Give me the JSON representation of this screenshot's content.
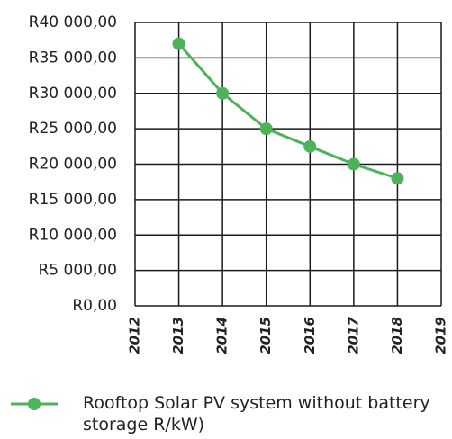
{
  "chart_data": {
    "type": "line",
    "x": [
      2013,
      2014,
      2015,
      2016,
      2017,
      2018
    ],
    "series": [
      {
        "name": "Rooftop Solar PV system without battery storage R/kW)",
        "color": "#4db35a",
        "values": [
          37000,
          30000,
          25000,
          22500,
          20000,
          18000
        ]
      }
    ],
    "xlim": [
      2012,
      2019
    ],
    "xticks": [
      2012,
      2013,
      2014,
      2015,
      2016,
      2017,
      2018,
      2019
    ],
    "ylim": [
      0,
      40000
    ],
    "yticks": [
      {
        "value": 0,
        "label": "R0,00"
      },
      {
        "value": 5000,
        "label": "R5 000,00"
      },
      {
        "value": 10000,
        "label": "R10 000,00"
      },
      {
        "value": 15000,
        "label": "R15 000,00"
      },
      {
        "value": 20000,
        "label": "R20 000,00"
      },
      {
        "value": 25000,
        "label": "R25 000,00"
      },
      {
        "value": 30000,
        "label": "R30 000,00"
      },
      {
        "value": 35000,
        "label": "R35 000,00"
      },
      {
        "value": 40000,
        "label": "R40 000,00"
      }
    ],
    "grid": true
  }
}
